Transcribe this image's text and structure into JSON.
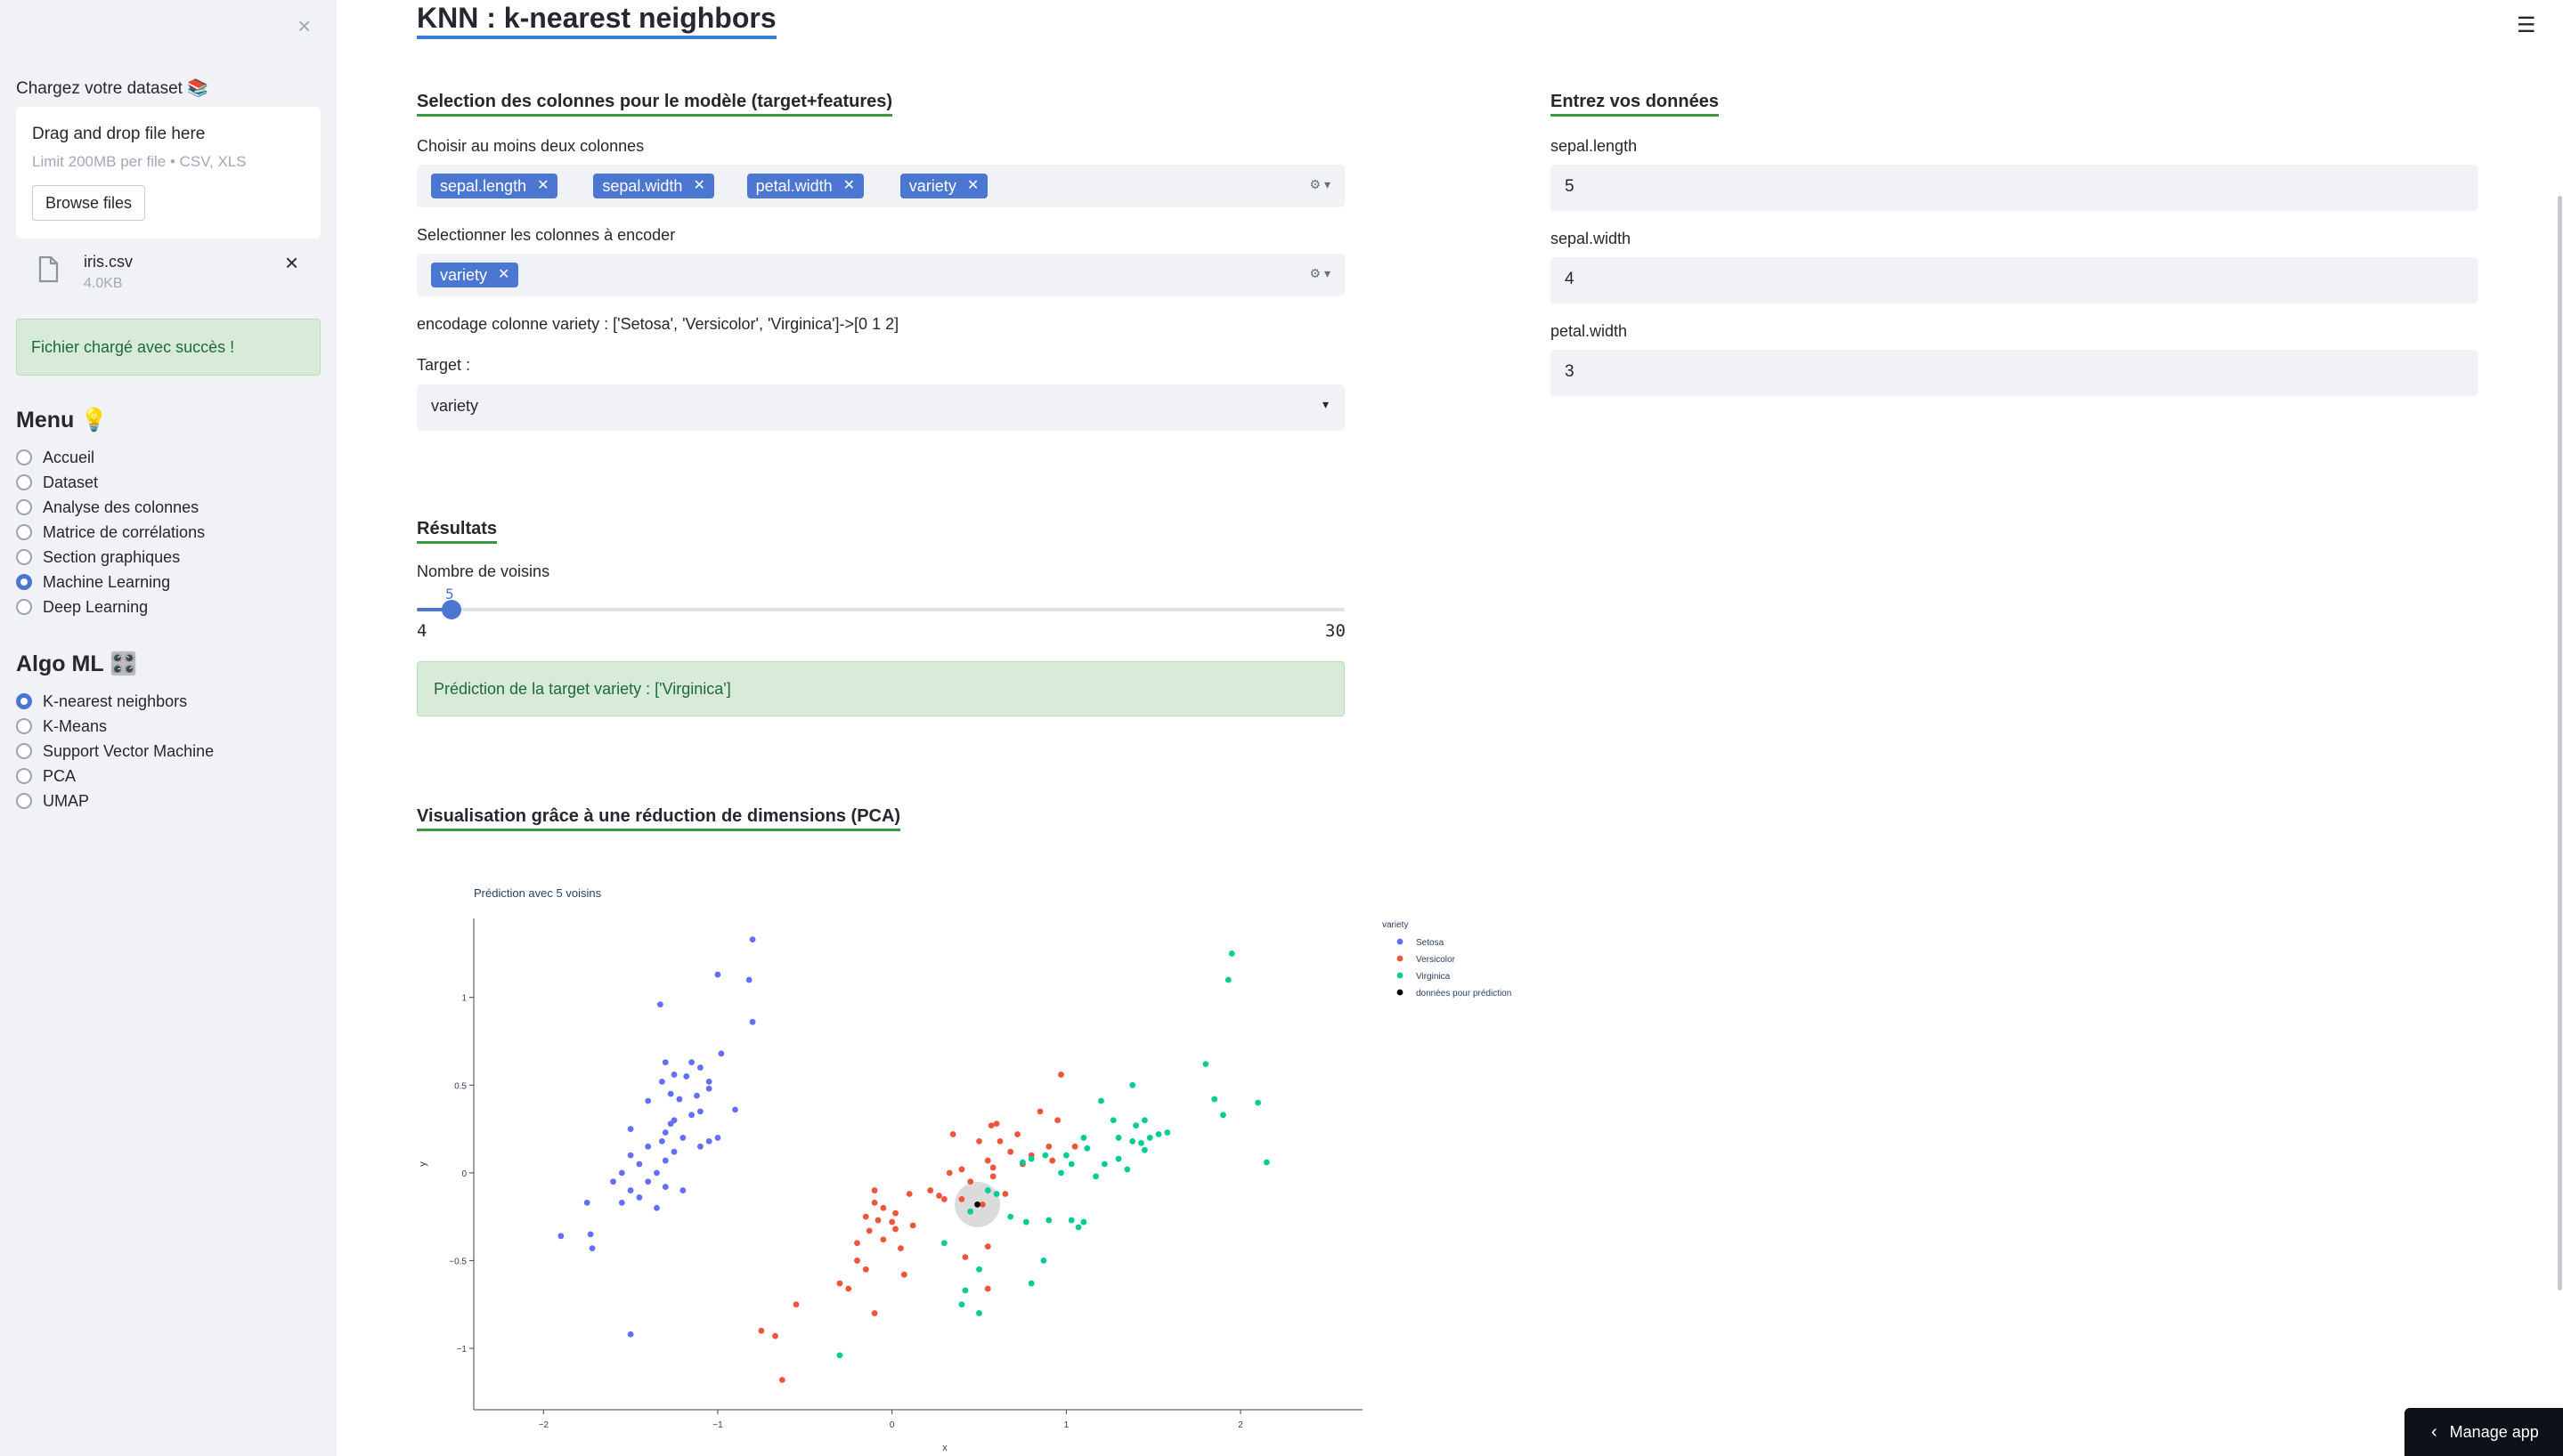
{
  "sidebar": {
    "close_icon": "close-icon",
    "upload_label": "Chargez votre dataset 📚",
    "drag_text": "Drag and drop file here",
    "limit_text": "Limit 200MB per file • CSV, XLS",
    "browse_label": "Browse files",
    "file_name": "iris.csv",
    "file_size": "4.0KB",
    "success_text": "Fichier chargé avec succès !",
    "menu_title": "Menu 💡",
    "menu_items": [
      "Accueil",
      "Dataset",
      "Analyse des colonnes",
      "Matrice de corrélations",
      "Section graphiques",
      "Machine Learning",
      "Deep Learning"
    ],
    "menu_selected": "Machine Learning",
    "algo_title": "Algo ML 🎛️",
    "algo_items": [
      "K-nearest neighbors",
      "K-Means",
      "Support Vector Machine",
      "PCA",
      "UMAP"
    ],
    "algo_selected": "K-nearest neighbors"
  },
  "main": {
    "title": "KNN : k-nearest neighbors",
    "section_columns": "Selection des colonnes pour le modèle (target+features)",
    "choose_label": "Choisir au moins deux colonnes",
    "chosen_columns": [
      "sepal.length",
      "sepal.width",
      "petal.width",
      "variety"
    ],
    "encode_label": "Selectionner les colonnes à encoder",
    "encoded_columns": [
      "variety"
    ],
    "encoding_text": "encodage colonne variety : ['Setosa', 'Versicolor', 'Virginica']->[0 1 2]",
    "target_label": "Target :",
    "target_value": "variety",
    "section_input": "Entrez vos données",
    "inputs": [
      {
        "label": "sepal.length",
        "value": "5"
      },
      {
        "label": "sepal.width",
        "value": "4"
      },
      {
        "label": "petal.width",
        "value": "3"
      }
    ],
    "section_results": "Résultats",
    "neighbors_label": "Nombre de voisins",
    "slider": {
      "value": "5",
      "min": "4",
      "max": "30"
    },
    "prediction_text": "Prédiction de la target variety : ['Virginica']",
    "section_viz": "Visualisation grâce à une réduction de dimensions (PCA)",
    "manage_label": "Manage app"
  },
  "chart_data": {
    "type": "scatter",
    "title": "Prédiction avec 5 voisins",
    "xlabel": "x",
    "ylabel": "y",
    "xlim": [
      -2.4,
      2.7
    ],
    "ylim": [
      -1.35,
      1.45
    ],
    "xticks": [
      -2,
      -1,
      0,
      1,
      2
    ],
    "yticks": [
      -1,
      -0.5,
      0,
      0.5,
      1
    ],
    "xtick_labels": [
      "−2",
      "−1",
      "0",
      "1",
      "2"
    ],
    "ytick_labels": [
      "−1",
      "−0.5",
      "0",
      "0.5",
      "1"
    ],
    "legend_title": "variety",
    "legend_position": "right",
    "series": [
      {
        "name": "Setosa",
        "color": "#636efa",
        "points": [
          [
            -0.8,
            1.33
          ],
          [
            -0.82,
            1.1
          ],
          [
            -1.0,
            1.13
          ],
          [
            -1.33,
            0.96
          ],
          [
            -0.8,
            0.86
          ],
          [
            -0.98,
            0.68
          ],
          [
            -1.1,
            0.6
          ],
          [
            -1.15,
            0.63
          ],
          [
            -1.3,
            0.63
          ],
          [
            -1.25,
            0.56
          ],
          [
            -1.18,
            0.55
          ],
          [
            -1.32,
            0.52
          ],
          [
            -1.05,
            0.52
          ],
          [
            -1.27,
            0.45
          ],
          [
            -1.22,
            0.42
          ],
          [
            -1.12,
            0.44
          ],
          [
            -1.05,
            0.48
          ],
          [
            -0.9,
            0.36
          ],
          [
            -1.25,
            0.3
          ],
          [
            -1.27,
            0.28
          ],
          [
            -1.4,
            0.41
          ],
          [
            -1.1,
            0.35
          ],
          [
            -1.15,
            0.33
          ],
          [
            -1.3,
            0.23
          ],
          [
            -1.32,
            0.18
          ],
          [
            -1.2,
            0.2
          ],
          [
            -1.0,
            0.2
          ],
          [
            -1.05,
            0.18
          ],
          [
            -1.1,
            0.15
          ],
          [
            -1.4,
            0.15
          ],
          [
            -1.5,
            0.25
          ],
          [
            -1.5,
            0.1
          ],
          [
            -1.3,
            0.07
          ],
          [
            -1.25,
            0.12
          ],
          [
            -1.45,
            0.05
          ],
          [
            -1.55,
            0.0
          ],
          [
            -1.35,
            0.0
          ],
          [
            -1.4,
            -0.05
          ],
          [
            -1.3,
            -0.08
          ],
          [
            -1.5,
            -0.1
          ],
          [
            -1.6,
            -0.05
          ],
          [
            -1.2,
            -0.1
          ],
          [
            -1.45,
            -0.14
          ],
          [
            -1.35,
            -0.2
          ],
          [
            -1.55,
            -0.17
          ],
          [
            -1.75,
            -0.17
          ],
          [
            -1.73,
            -0.35
          ],
          [
            -1.9,
            -0.36
          ],
          [
            -1.72,
            -0.43
          ],
          [
            -1.5,
            -0.92
          ]
        ]
      },
      {
        "name": "Versicolor",
        "color": "#ef553b",
        "points": [
          [
            0.97,
            0.56
          ],
          [
            0.85,
            0.35
          ],
          [
            0.95,
            0.3
          ],
          [
            0.6,
            0.28
          ],
          [
            0.57,
            0.27
          ],
          [
            0.35,
            0.22
          ],
          [
            0.72,
            0.22
          ],
          [
            0.5,
            0.18
          ],
          [
            0.62,
            0.18
          ],
          [
            0.68,
            0.12
          ],
          [
            0.9,
            0.15
          ],
          [
            0.8,
            0.1
          ],
          [
            1.05,
            0.15
          ],
          [
            0.75,
            0.05
          ],
          [
            0.92,
            0.07
          ],
          [
            0.55,
            0.07
          ],
          [
            0.58,
            0.03
          ],
          [
            0.33,
            0.0
          ],
          [
            0.4,
            0.02
          ],
          [
            0.58,
            -0.02
          ],
          [
            0.45,
            -0.05
          ],
          [
            0.22,
            -0.1
          ],
          [
            0.27,
            -0.13
          ],
          [
            0.3,
            -0.15
          ],
          [
            0.65,
            -0.12
          ],
          [
            0.4,
            -0.15
          ],
          [
            0.52,
            -0.18
          ],
          [
            0.1,
            -0.12
          ],
          [
            -0.1,
            -0.1
          ],
          [
            -0.1,
            -0.17
          ],
          [
            -0.05,
            -0.2
          ],
          [
            0.02,
            -0.23
          ],
          [
            -0.15,
            -0.25
          ],
          [
            -0.08,
            -0.27
          ],
          [
            0.0,
            -0.28
          ],
          [
            0.02,
            -0.32
          ],
          [
            -0.13,
            -0.33
          ],
          [
            0.12,
            -0.3
          ],
          [
            -0.05,
            -0.38
          ],
          [
            0.05,
            -0.43
          ],
          [
            -0.2,
            -0.4
          ],
          [
            -0.2,
            -0.5
          ],
          [
            -0.15,
            -0.55
          ],
          [
            -0.3,
            -0.63
          ],
          [
            -0.25,
            -0.66
          ],
          [
            0.07,
            -0.58
          ],
          [
            -0.1,
            -0.8
          ],
          [
            -0.55,
            -0.75
          ],
          [
            -0.75,
            -0.9
          ],
          [
            -0.67,
            -0.93
          ],
          [
            -0.63,
            -1.18
          ],
          [
            0.42,
            -0.48
          ],
          [
            0.55,
            -0.42
          ],
          [
            0.55,
            -0.66
          ]
        ]
      },
      {
        "name": "Virginica",
        "color": "#00cc96",
        "points": [
          [
            1.95,
            1.25
          ],
          [
            1.93,
            1.1
          ],
          [
            1.8,
            0.62
          ],
          [
            1.85,
            0.42
          ],
          [
            1.9,
            0.33
          ],
          [
            2.1,
            0.4
          ],
          [
            2.15,
            0.06
          ],
          [
            1.38,
            0.5
          ],
          [
            1.2,
            0.41
          ],
          [
            1.27,
            0.3
          ],
          [
            1.4,
            0.27
          ],
          [
            1.45,
            0.3
          ],
          [
            1.53,
            0.22
          ],
          [
            1.48,
            0.2
          ],
          [
            1.38,
            0.18
          ],
          [
            1.58,
            0.23
          ],
          [
            1.3,
            0.2
          ],
          [
            1.43,
            0.17
          ],
          [
            1.45,
            0.13
          ],
          [
            1.1,
            0.2
          ],
          [
            1.12,
            0.14
          ],
          [
            1.3,
            0.08
          ],
          [
            1.22,
            0.05
          ],
          [
            1.35,
            0.02
          ],
          [
            1.0,
            0.1
          ],
          [
            1.03,
            0.05
          ],
          [
            0.8,
            0.08
          ],
          [
            0.75,
            0.06
          ],
          [
            0.88,
            0.1
          ],
          [
            0.97,
            0.0
          ],
          [
            1.17,
            -0.02
          ],
          [
            0.6,
            -0.12
          ],
          [
            0.55,
            -0.1
          ],
          [
            0.68,
            -0.25
          ],
          [
            0.77,
            -0.28
          ],
          [
            0.9,
            -0.27
          ],
          [
            1.03,
            -0.27
          ],
          [
            1.1,
            -0.28
          ],
          [
            1.07,
            -0.31
          ],
          [
            0.45,
            -0.22
          ],
          [
            0.3,
            -0.4
          ],
          [
            0.5,
            -0.55
          ],
          [
            0.42,
            -0.67
          ],
          [
            0.87,
            -0.5
          ],
          [
            0.8,
            -0.63
          ],
          [
            0.4,
            -0.75
          ],
          [
            0.5,
            -0.8
          ],
          [
            -0.3,
            -1.04
          ]
        ]
      },
      {
        "name": "données pour prédiction",
        "color": "#000000",
        "points": [
          [
            0.49,
            -0.18
          ]
        ]
      }
    ],
    "prediction_area": {
      "center": [
        0.49,
        -0.18
      ],
      "radius": 0.13
    }
  }
}
